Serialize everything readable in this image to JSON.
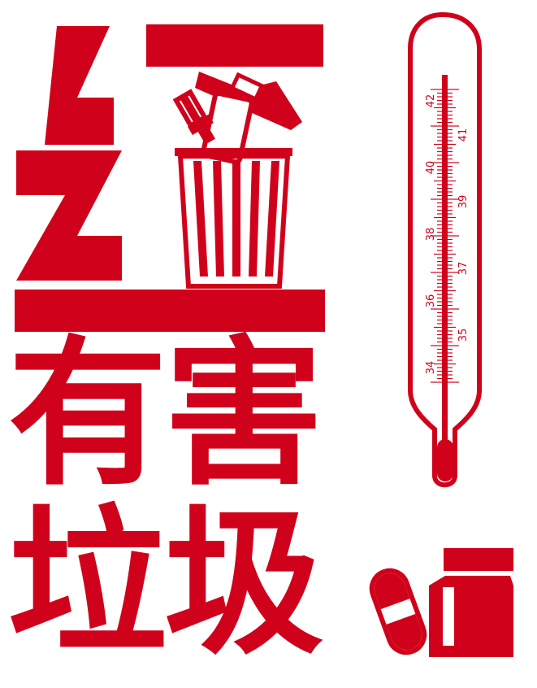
{
  "headline": {
    "char_red": "红",
    "line2": "有害",
    "line3": "垃圾"
  },
  "thermometer": {
    "left_scale": [
      "34",
      "36",
      "38",
      "40",
      "42"
    ],
    "right_scale": [
      "35",
      "37",
      "39",
      "41"
    ]
  },
  "colors": {
    "red": "#d0021b",
    "background": "#ffffff"
  }
}
